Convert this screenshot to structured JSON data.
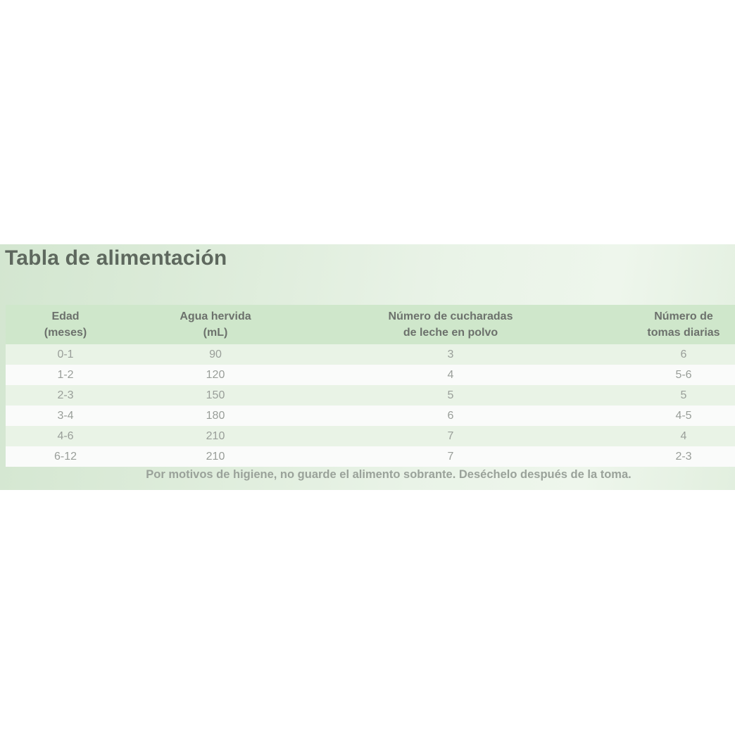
{
  "panel": {
    "title": "Tabla de alimentación",
    "footnote": "Por motivos de higiene, no guarde el alimento sobrante. Deséchelo después de la toma."
  },
  "table": {
    "columns": [
      {
        "line1": "Edad",
        "line2": "(meses)"
      },
      {
        "line1": "Agua hervida",
        "line2": "(mL)"
      },
      {
        "line1": "Número de cucharadas",
        "line2": "de leche en polvo"
      },
      {
        "line1": "Número de",
        "line2": "tomas diarias"
      }
    ],
    "rows": [
      [
        "0-1",
        "90",
        "3",
        "6"
      ],
      [
        "1-2",
        "120",
        "4",
        "5-6"
      ],
      [
        "2-3",
        "150",
        "5",
        "5"
      ],
      [
        "3-4",
        "180",
        "6",
        "4-5"
      ],
      [
        "4-6",
        "210",
        "7",
        "4"
      ],
      [
        "6-12",
        "210",
        "7",
        "2-3"
      ]
    ]
  },
  "colors": {
    "header_row_bg": "#cfe7cb",
    "row_green_bg": "#e9f3e6",
    "row_white_bg": "#fafbfa",
    "panel_gradient_left": "#d3e6d0",
    "panel_gradient_right": "#e2efdf",
    "title_text": "#5e685e",
    "header_text": "#6c716c",
    "body_text": "#999e99",
    "footnote_text": "#9aa29a"
  }
}
